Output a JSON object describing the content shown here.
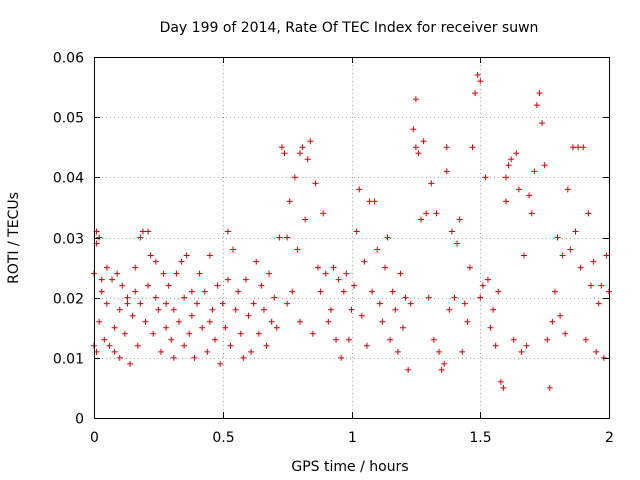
{
  "chart_data": {
    "type": "scatter",
    "title": "Day 199 of 2014, Rate Of TEC Index for receiver suwn",
    "xlabel": "GPS time / hours",
    "ylabel": "ROTI / TECUs",
    "xlim": [
      0,
      2
    ],
    "ylim": [
      0,
      0.06
    ],
    "xticks": [
      0,
      0.5,
      1,
      1.5,
      2
    ],
    "xtick_labels": [
      "0",
      "0.5",
      "1",
      "1.5",
      "2"
    ],
    "yticks": [
      0,
      0.01,
      0.02,
      0.03,
      0.04,
      0.05,
      0.06
    ],
    "ytick_labels": [
      "0",
      "0.01",
      "0.02",
      "0.03",
      "0.04",
      "0.05",
      "0.06"
    ],
    "grid": true,
    "marker": "+",
    "color": "#dd0000",
    "series": [
      {
        "name": "ROTI",
        "points": [
          [
            0.0,
            0.012
          ],
          [
            0.0,
            0.024
          ],
          [
            0.01,
            0.031
          ],
          [
            0.01,
            0.011
          ],
          [
            0.01,
            0.029
          ],
          [
            0.02,
            0.03
          ],
          [
            0.02,
            0.016
          ],
          [
            0.03,
            0.021
          ],
          [
            0.03,
            0.023
          ],
          [
            0.04,
            0.013
          ],
          [
            0.05,
            0.019
          ],
          [
            0.05,
            0.025
          ],
          [
            0.06,
            0.012
          ],
          [
            0.07,
            0.023
          ],
          [
            0.08,
            0.015
          ],
          [
            0.08,
            0.011
          ],
          [
            0.09,
            0.024
          ],
          [
            0.1,
            0.018
          ],
          [
            0.1,
            0.01
          ],
          [
            0.11,
            0.022
          ],
          [
            0.12,
            0.014
          ],
          [
            0.13,
            0.02
          ],
          [
            0.13,
            0.019
          ],
          [
            0.14,
            0.009
          ],
          [
            0.15,
            0.017
          ],
          [
            0.16,
            0.025
          ],
          [
            0.16,
            0.021
          ],
          [
            0.17,
            0.012
          ],
          [
            0.18,
            0.03
          ],
          [
            0.18,
            0.019
          ],
          [
            0.19,
            0.031
          ],
          [
            0.2,
            0.016
          ],
          [
            0.21,
            0.031
          ],
          [
            0.21,
            0.022
          ],
          [
            0.22,
            0.027
          ],
          [
            0.23,
            0.014
          ],
          [
            0.24,
            0.02
          ],
          [
            0.24,
            0.026
          ],
          [
            0.25,
            0.018
          ],
          [
            0.26,
            0.011
          ],
          [
            0.27,
            0.024
          ],
          [
            0.28,
            0.015
          ],
          [
            0.28,
            0.019
          ],
          [
            0.29,
            0.022
          ],
          [
            0.3,
            0.013
          ],
          [
            0.31,
            0.018
          ],
          [
            0.31,
            0.01
          ],
          [
            0.32,
            0.024
          ],
          [
            0.33,
            0.016
          ],
          [
            0.34,
            0.026
          ],
          [
            0.35,
            0.012
          ],
          [
            0.35,
            0.02
          ],
          [
            0.36,
            0.027
          ],
          [
            0.37,
            0.014
          ],
          [
            0.38,
            0.017
          ],
          [
            0.38,
            0.021
          ],
          [
            0.39,
            0.01
          ],
          [
            0.4,
            0.019
          ],
          [
            0.41,
            0.024
          ],
          [
            0.42,
            0.015
          ],
          [
            0.43,
            0.021
          ],
          [
            0.44,
            0.011
          ],
          [
            0.45,
            0.027
          ],
          [
            0.45,
            0.016
          ],
          [
            0.46,
            0.018
          ],
          [
            0.47,
            0.013
          ],
          [
            0.48,
            0.022
          ],
          [
            0.49,
            0.009
          ],
          [
            0.5,
            0.019
          ],
          [
            0.51,
            0.015
          ],
          [
            0.52,
            0.023
          ],
          [
            0.52,
            0.031
          ],
          [
            0.53,
            0.012
          ],
          [
            0.54,
            0.028
          ],
          [
            0.55,
            0.018
          ],
          [
            0.56,
            0.021
          ],
          [
            0.57,
            0.014
          ],
          [
            0.58,
            0.01
          ],
          [
            0.59,
            0.023
          ],
          [
            0.6,
            0.017
          ],
          [
            0.61,
            0.011
          ],
          [
            0.62,
            0.019
          ],
          [
            0.63,
            0.026
          ],
          [
            0.64,
            0.014
          ],
          [
            0.65,
            0.022
          ],
          [
            0.66,
            0.018
          ],
          [
            0.67,
            0.012
          ],
          [
            0.68,
            0.024
          ],
          [
            0.69,
            0.016
          ],
          [
            0.7,
            0.02
          ],
          [
            0.71,
            0.015
          ],
          [
            0.72,
            0.03
          ],
          [
            0.73,
            0.045
          ],
          [
            0.74,
            0.044
          ],
          [
            0.75,
            0.03
          ],
          [
            0.75,
            0.019
          ],
          [
            0.76,
            0.036
          ],
          [
            0.77,
            0.021
          ],
          [
            0.78,
            0.04
          ],
          [
            0.79,
            0.028
          ],
          [
            0.8,
            0.044
          ],
          [
            0.8,
            0.016
          ],
          [
            0.81,
            0.045
          ],
          [
            0.82,
            0.033
          ],
          [
            0.83,
            0.043
          ],
          [
            0.84,
            0.046
          ],
          [
            0.85,
            0.014
          ],
          [
            0.86,
            0.039
          ],
          [
            0.87,
            0.025
          ],
          [
            0.88,
            0.021
          ],
          [
            0.89,
            0.034
          ],
          [
            0.9,
            0.024
          ],
          [
            0.91,
            0.016
          ],
          [
            0.92,
            0.018
          ],
          [
            0.93,
            0.025
          ],
          [
            0.94,
            0.013
          ],
          [
            0.95,
            0.023
          ],
          [
            0.96,
            0.01
          ],
          [
            0.97,
            0.021
          ],
          [
            0.98,
            0.024
          ],
          [
            0.99,
            0.013
          ],
          [
            1.0,
            0.018
          ],
          [
            1.01,
            0.022
          ],
          [
            1.02,
            0.031
          ],
          [
            1.03,
            0.038
          ],
          [
            1.04,
            0.017
          ],
          [
            1.05,
            0.026
          ],
          [
            1.06,
            0.012
          ],
          [
            1.07,
            0.036
          ],
          [
            1.08,
            0.021
          ],
          [
            1.09,
            0.036
          ],
          [
            1.1,
            0.028
          ],
          [
            1.11,
            0.019
          ],
          [
            1.12,
            0.016
          ],
          [
            1.13,
            0.025
          ],
          [
            1.14,
            0.03
          ],
          [
            1.15,
            0.013
          ],
          [
            1.16,
            0.021
          ],
          [
            1.17,
            0.018
          ],
          [
            1.18,
            0.011
          ],
          [
            1.19,
            0.024
          ],
          [
            1.2,
            0.015
          ],
          [
            1.21,
            0.02
          ],
          [
            1.22,
            0.008
          ],
          [
            1.23,
            0.019
          ],
          [
            1.24,
            0.048
          ],
          [
            1.25,
            0.053
          ],
          [
            1.25,
            0.045
          ],
          [
            1.26,
            0.044
          ],
          [
            1.27,
            0.033
          ],
          [
            1.28,
            0.046
          ],
          [
            1.29,
            0.034
          ],
          [
            1.3,
            0.02
          ],
          [
            1.31,
            0.039
          ],
          [
            1.32,
            0.013
          ],
          [
            1.33,
            0.034
          ],
          [
            1.34,
            0.011
          ],
          [
            1.35,
            0.008
          ],
          [
            1.36,
            0.009
          ],
          [
            1.37,
            0.041
          ],
          [
            1.37,
            0.045
          ],
          [
            1.38,
            0.018
          ],
          [
            1.39,
            0.031
          ],
          [
            1.4,
            0.02
          ],
          [
            1.41,
            0.029
          ],
          [
            1.42,
            0.033
          ],
          [
            1.43,
            0.011
          ],
          [
            1.44,
            0.019
          ],
          [
            1.45,
            0.016
          ],
          [
            1.46,
            0.025
          ],
          [
            1.47,
            0.045
          ],
          [
            1.48,
            0.054
          ],
          [
            1.49,
            0.057
          ],
          [
            1.5,
            0.056
          ],
          [
            1.5,
            0.02
          ],
          [
            1.51,
            0.022
          ],
          [
            1.52,
            0.04
          ],
          [
            1.53,
            0.023
          ],
          [
            1.54,
            0.015
          ],
          [
            1.55,
            0.018
          ],
          [
            1.56,
            0.012
          ],
          [
            1.57,
            0.021
          ],
          [
            1.58,
            0.006
          ],
          [
            1.59,
            0.005
          ],
          [
            1.6,
            0.036
          ],
          [
            1.6,
            0.04
          ],
          [
            1.61,
            0.042
          ],
          [
            1.62,
            0.043
          ],
          [
            1.63,
            0.013
          ],
          [
            1.64,
            0.044
          ],
          [
            1.65,
            0.038
          ],
          [
            1.66,
            0.011
          ],
          [
            1.67,
            0.027
          ],
          [
            1.68,
            0.012
          ],
          [
            1.69,
            0.037
          ],
          [
            1.7,
            0.034
          ],
          [
            1.71,
            0.041
          ],
          [
            1.72,
            0.052
          ],
          [
            1.73,
            0.054
          ],
          [
            1.74,
            0.049
          ],
          [
            1.75,
            0.042
          ],
          [
            1.76,
            0.013
          ],
          [
            1.77,
            0.005
          ],
          [
            1.78,
            0.016
          ],
          [
            1.79,
            0.021
          ],
          [
            1.8,
            0.03
          ],
          [
            1.81,
            0.017
          ],
          [
            1.82,
            0.027
          ],
          [
            1.83,
            0.014
          ],
          [
            1.84,
            0.038
          ],
          [
            1.85,
            0.028
          ],
          [
            1.86,
            0.045
          ],
          [
            1.87,
            0.031
          ],
          [
            1.88,
            0.045
          ],
          [
            1.89,
            0.025
          ],
          [
            1.9,
            0.045
          ],
          [
            1.91,
            0.013
          ],
          [
            1.92,
            0.034
          ],
          [
            1.93,
            0.022
          ],
          [
            1.94,
            0.026
          ],
          [
            1.95,
            0.011
          ],
          [
            1.96,
            0.019
          ],
          [
            1.97,
            0.022
          ],
          [
            1.98,
            0.01
          ],
          [
            1.99,
            0.027
          ],
          [
            2.0,
            0.021
          ]
        ]
      }
    ]
  }
}
